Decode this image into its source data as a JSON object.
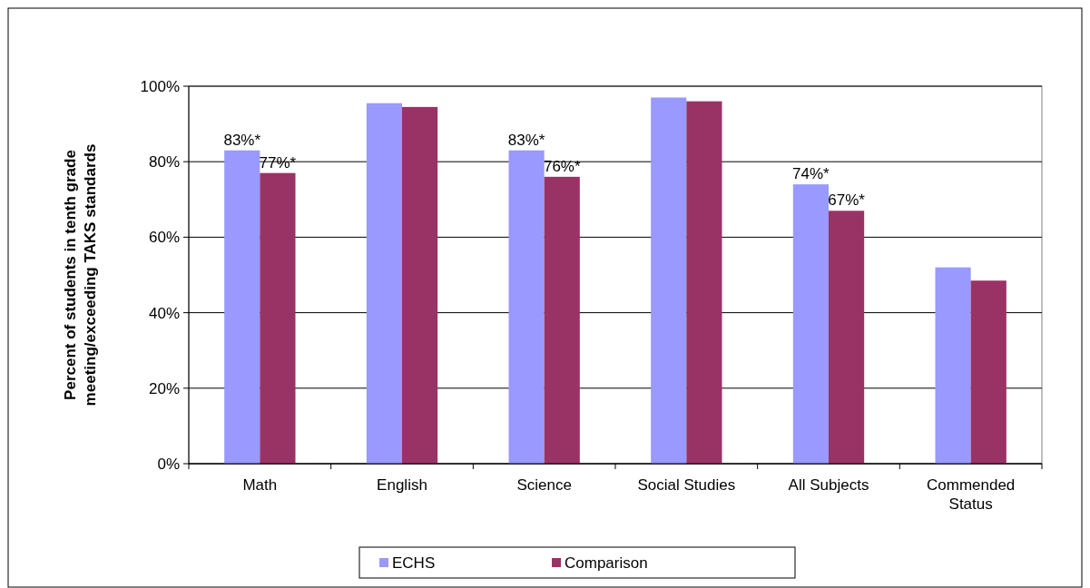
{
  "chart_data": {
    "type": "bar",
    "ylabel": "Percent of students in tenth grade meeting/exceeding TAKS standards",
    "categories": [
      "Math",
      "English",
      "Science",
      "Social Studies",
      "All Subjects",
      "Commended Status"
    ],
    "series": [
      {
        "name": "ECHS",
        "color": "#9999ff",
        "values": [
          83,
          95.5,
          83,
          97,
          74,
          52
        ],
        "value_labels": [
          "83%*",
          null,
          "83%*",
          null,
          "74%*",
          null
        ]
      },
      {
        "name": "Comparison",
        "color": "#993366",
        "values": [
          77,
          94.5,
          76,
          96,
          67,
          48.5
        ],
        "value_labels": [
          "77%*",
          null,
          "76%*",
          null,
          "67%*",
          null
        ]
      }
    ],
    "ylim": [
      0,
      100
    ],
    "yticks": [
      {
        "value": 0,
        "label": "0%"
      },
      {
        "value": 20,
        "label": "20%"
      },
      {
        "value": 40,
        "label": "40%"
      },
      {
        "value": 60,
        "label": "60%"
      },
      {
        "value": 80,
        "label": "80%"
      },
      {
        "value": 100,
        "label": "100%"
      }
    ],
    "grid": "y",
    "legend": "bottom"
  }
}
